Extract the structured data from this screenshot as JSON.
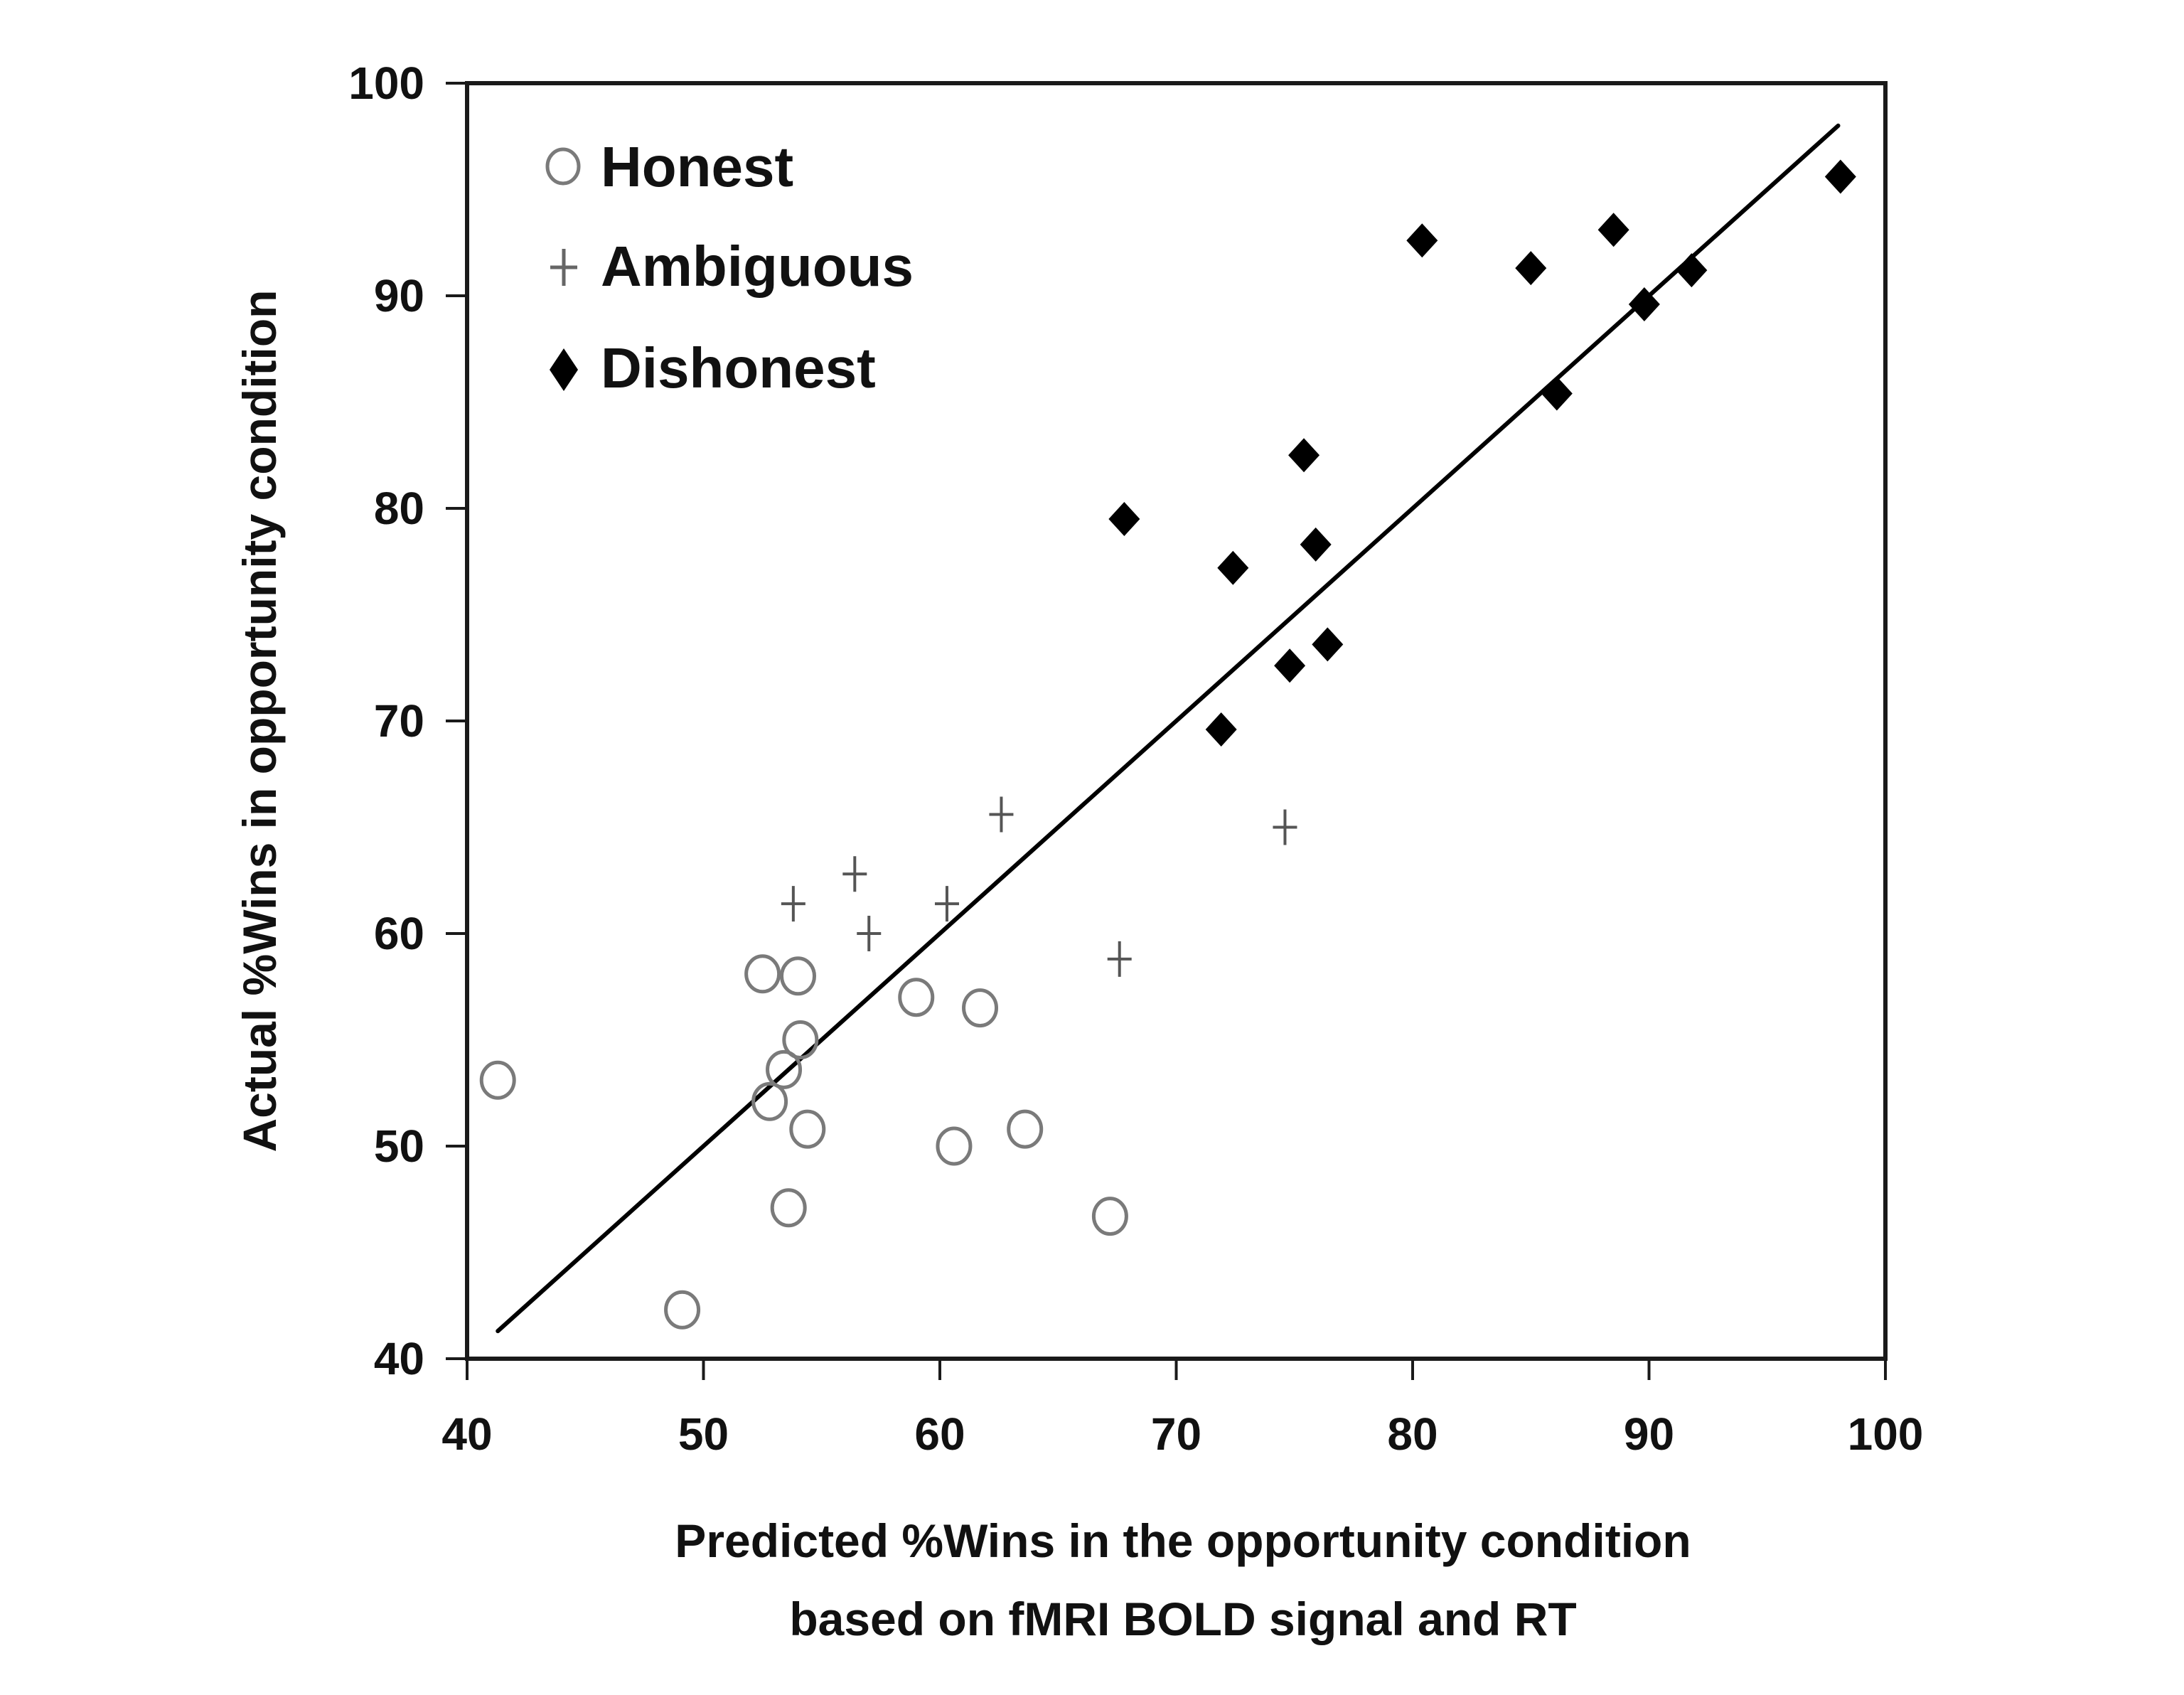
{
  "chart_data": {
    "type": "scatter",
    "title": "",
    "xlabel": "Predicted %Wins in the opportunity condition based on fMRI BOLD signal and RT",
    "xlabel_lines": [
      "Predicted %Wins in the opportunity condition",
      "based on fMRI BOLD signal and RT"
    ],
    "ylabel": "Actual %Wins in opportunity condition",
    "xlim": [
      40,
      100
    ],
    "ylim": [
      40,
      100
    ],
    "xticks": [
      40,
      50,
      60,
      70,
      80,
      90,
      100
    ],
    "yticks": [
      40,
      50,
      60,
      70,
      80,
      90,
      100
    ],
    "grid": false,
    "legend_position": "upper-left-inside",
    "series": [
      {
        "name": "Honest",
        "marker": "open-circle",
        "color": "#777777",
        "points": [
          [
            41.3,
            53.1
          ],
          [
            52.5,
            58.1
          ],
          [
            54.0,
            58.0
          ],
          [
            54.1,
            55.0
          ],
          [
            53.4,
            53.6
          ],
          [
            52.8,
            52.1
          ],
          [
            54.4,
            50.8
          ],
          [
            53.6,
            47.1
          ],
          [
            49.1,
            42.3
          ],
          [
            59.0,
            57.0
          ],
          [
            61.7,
            56.5
          ],
          [
            60.6,
            50.0
          ],
          [
            63.6,
            50.8
          ],
          [
            67.2,
            46.7
          ]
        ]
      },
      {
        "name": "Ambiguous",
        "marker": "plus",
        "color": "#555555",
        "points": [
          [
            53.8,
            61.4
          ],
          [
            56.4,
            62.8
          ],
          [
            57.0,
            60.0
          ],
          [
            60.3,
            61.4
          ],
          [
            62.6,
            65.6
          ],
          [
            67.6,
            58.8
          ],
          [
            74.6,
            65.0
          ]
        ]
      },
      {
        "name": "Dishonest",
        "marker": "filled-diamond",
        "color": "#000000",
        "points": [
          [
            98.1,
            95.6
          ],
          [
            80.4,
            92.6
          ],
          [
            85.0,
            91.3
          ],
          [
            88.5,
            93.1
          ],
          [
            91.8,
            91.2
          ],
          [
            89.8,
            89.6
          ],
          [
            86.1,
            85.4
          ],
          [
            75.4,
            82.5
          ],
          [
            67.8,
            79.5
          ],
          [
            72.4,
            77.2
          ],
          [
            75.9,
            78.3
          ],
          [
            74.8,
            72.6
          ],
          [
            76.4,
            73.6
          ],
          [
            71.9,
            69.6
          ]
        ]
      }
    ],
    "fit_line": {
      "name": "regression line",
      "color": "#000000",
      "from": [
        41.3,
        41.3
      ],
      "to": [
        98.0,
        98.0
      ]
    }
  },
  "legend": {
    "items": [
      {
        "label": "Honest",
        "marker": "open-circle"
      },
      {
        "label": "Ambiguous",
        "marker": "plus"
      },
      {
        "label": "Dishonest",
        "marker": "filled-diamond"
      }
    ]
  }
}
